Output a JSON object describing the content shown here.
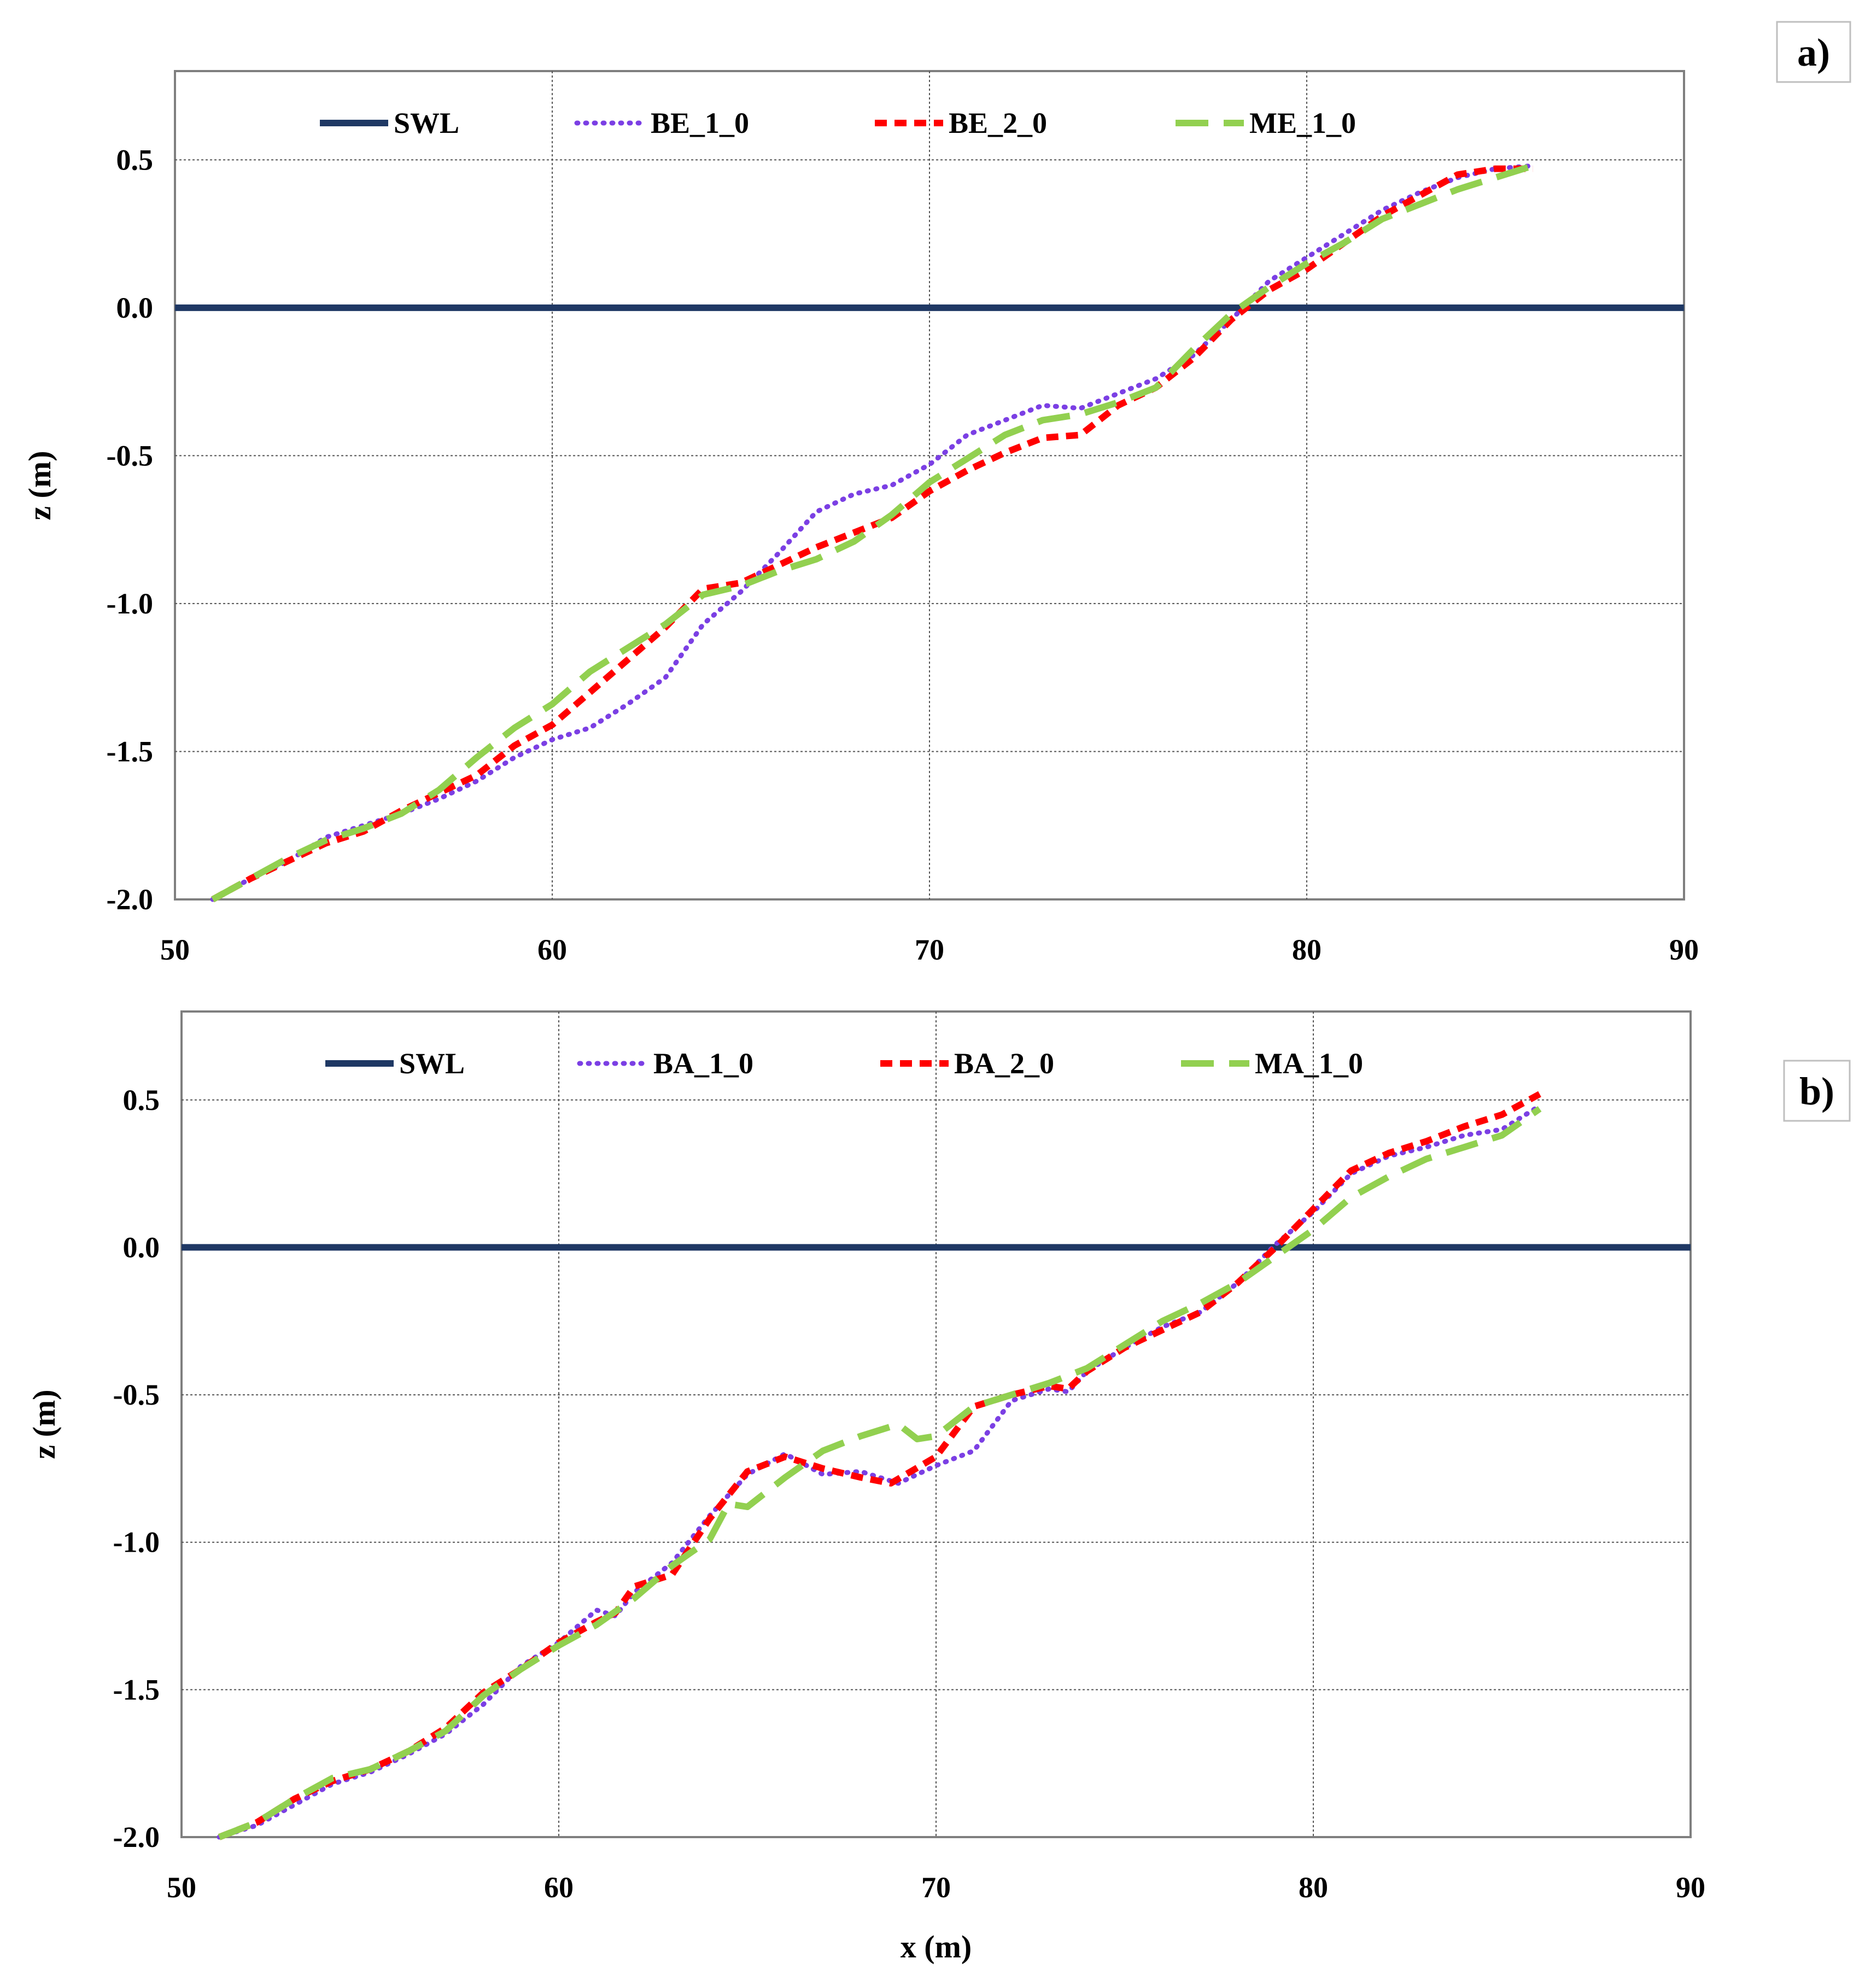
{
  "colors": {
    "SWL": "#1f3864",
    "BE": "#7b3fe4",
    "BE2": "#ff0000",
    "ME": "#92d050"
  },
  "chart_data": [
    {
      "type": "line",
      "panel_label": "a)",
      "xlabel": "",
      "ylabel": "z (m)",
      "xlim": [
        50,
        90
      ],
      "ylim": [
        -2.0,
        0.8
      ],
      "xticks": [
        "50",
        "60",
        "70",
        "80",
        "90"
      ],
      "yticks": [
        "0.5",
        "0.0",
        "-0.5",
        "-1.0",
        "-1.5",
        "-2.0"
      ],
      "grid": true,
      "legend_position": "top",
      "series": [
        {
          "name": "SWL",
          "style": "solid",
          "x": [
            50,
            90
          ],
          "y": [
            0.0,
            0.0
          ]
        },
        {
          "name": "BE_1_0",
          "style": "dotted",
          "x": [
            51,
            52,
            53,
            54,
            55,
            56,
            57,
            58,
            59,
            60,
            61,
            62,
            63,
            63.5,
            64,
            65,
            66,
            67,
            68,
            69,
            70,
            71,
            72,
            73,
            74,
            75,
            76,
            77,
            78,
            79,
            80,
            81,
            82,
            83,
            84,
            85,
            86
          ],
          "y": [
            -2.0,
            -1.93,
            -1.87,
            -1.79,
            -1.75,
            -1.71,
            -1.66,
            -1.6,
            -1.52,
            -1.46,
            -1.42,
            -1.34,
            -1.25,
            -1.16,
            -1.07,
            -0.96,
            -0.83,
            -0.69,
            -0.63,
            -0.6,
            -0.53,
            -0.43,
            -0.38,
            -0.33,
            -0.34,
            -0.29,
            -0.24,
            -0.16,
            -0.04,
            0.09,
            0.17,
            0.25,
            0.33,
            0.39,
            0.44,
            0.47,
            0.48
          ]
        },
        {
          "name": "BE_2_0",
          "style": "dashed",
          "x": [
            51,
            52,
            53,
            54,
            55,
            56,
            57,
            58,
            59,
            60,
            61,
            62,
            63,
            64,
            65,
            66,
            67,
            68,
            69,
            70,
            71,
            72,
            73,
            74,
            75,
            76,
            77,
            78,
            79,
            80,
            81,
            82,
            83,
            84,
            85,
            86
          ],
          "y": [
            -2.0,
            -1.93,
            -1.87,
            -1.81,
            -1.77,
            -1.7,
            -1.64,
            -1.58,
            -1.48,
            -1.41,
            -1.3,
            -1.19,
            -1.08,
            -0.95,
            -0.93,
            -0.87,
            -0.81,
            -0.76,
            -0.71,
            -0.62,
            -0.55,
            -0.49,
            -0.44,
            -0.43,
            -0.33,
            -0.27,
            -0.17,
            -0.04,
            0.06,
            0.13,
            0.22,
            0.31,
            0.38,
            0.45,
            0.47,
            0.47
          ]
        },
        {
          "name": "ME_1_0",
          "style": "longdash",
          "x": [
            51,
            52,
            53,
            54,
            55,
            56,
            57,
            58,
            59,
            60,
            61,
            62,
            63,
            64,
            65,
            66,
            67,
            68,
            69,
            70,
            71,
            72,
            73,
            74,
            75,
            76,
            77,
            78,
            79,
            80,
            81,
            82,
            83,
            84,
            85,
            86
          ],
          "y": [
            -2.0,
            -1.93,
            -1.86,
            -1.8,
            -1.76,
            -1.71,
            -1.63,
            -1.52,
            -1.42,
            -1.34,
            -1.23,
            -1.15,
            -1.07,
            -0.97,
            -0.94,
            -0.89,
            -0.85,
            -0.79,
            -0.7,
            -0.59,
            -0.51,
            -0.43,
            -0.38,
            -0.36,
            -0.32,
            -0.27,
            -0.14,
            -0.02,
            0.07,
            0.15,
            0.22,
            0.3,
            0.35,
            0.4,
            0.44,
            0.48
          ]
        }
      ]
    },
    {
      "type": "line",
      "panel_label": "b)",
      "xlabel": "x (m)",
      "ylabel": "z (m)",
      "xlim": [
        50,
        90
      ],
      "ylim": [
        -2.0,
        0.8
      ],
      "xticks": [
        "50",
        "60",
        "70",
        "80",
        "90"
      ],
      "yticks": [
        "0.5",
        "0.0",
        "-0.5",
        "-1.0",
        "-1.5",
        "-2.0"
      ],
      "grid": true,
      "legend_position": "top",
      "series": [
        {
          "name": "SWL",
          "style": "solid",
          "x": [
            50,
            90
          ],
          "y": [
            0.0,
            0.0
          ]
        },
        {
          "name": "BA_1_0",
          "style": "dotted",
          "x": [
            51,
            52,
            53,
            54,
            55,
            56,
            57,
            58,
            59,
            60,
            61,
            61.5,
            62,
            63,
            64,
            65,
            66,
            67,
            68,
            69,
            70,
            71,
            72,
            73,
            73.5,
            74,
            75,
            76,
            77,
            78,
            79,
            80,
            81,
            82,
            83,
            84,
            85,
            86
          ],
          "y": [
            -2.0,
            -1.96,
            -1.89,
            -1.82,
            -1.78,
            -1.72,
            -1.65,
            -1.55,
            -1.42,
            -1.34,
            -1.23,
            -1.25,
            -1.17,
            -1.07,
            -0.91,
            -0.77,
            -0.7,
            -0.77,
            -0.76,
            -0.8,
            -0.74,
            -0.69,
            -0.52,
            -0.48,
            -0.49,
            -0.42,
            -0.34,
            -0.27,
            -0.22,
            -0.12,
            0.01,
            0.12,
            0.25,
            0.31,
            0.34,
            0.38,
            0.4,
            0.48
          ]
        },
        {
          "name": "BA_2_0",
          "style": "dashed",
          "x": [
            51,
            52,
            53,
            54,
            55,
            56,
            57,
            58,
            59,
            60,
            61,
            61.5,
            62,
            63,
            64,
            65,
            66,
            67,
            68,
            68.8,
            70,
            71,
            72,
            73,
            73.5,
            74,
            75,
            76,
            77,
            78,
            79,
            80,
            81,
            82,
            83,
            84,
            85,
            86
          ],
          "y": [
            -2.0,
            -1.95,
            -1.87,
            -1.81,
            -1.77,
            -1.71,
            -1.63,
            -1.51,
            -1.43,
            -1.34,
            -1.27,
            -1.24,
            -1.15,
            -1.11,
            -0.92,
            -0.76,
            -0.71,
            -0.75,
            -0.78,
            -0.8,
            -0.71,
            -0.54,
            -0.5,
            -0.47,
            -0.48,
            -0.42,
            -0.34,
            -0.28,
            -0.22,
            -0.12,
            0.0,
            0.13,
            0.26,
            0.32,
            0.36,
            0.41,
            0.45,
            0.52
          ]
        },
        {
          "name": "MA_1_0",
          "style": "longdash",
          "x": [
            51,
            52,
            53,
            54,
            55,
            56,
            57,
            58,
            59,
            60,
            61,
            62,
            63,
            64,
            64.5,
            65,
            66,
            67,
            68,
            69,
            69.5,
            70,
            71,
            72,
            73,
            74,
            75,
            76,
            77,
            78,
            79,
            80,
            81,
            82,
            83,
            84,
            85,
            86
          ],
          "y": [
            -2.0,
            -1.95,
            -1.87,
            -1.8,
            -1.77,
            -1.71,
            -1.64,
            -1.52,
            -1.43,
            -1.35,
            -1.28,
            -1.19,
            -1.08,
            -0.99,
            -0.87,
            -0.88,
            -0.78,
            -0.69,
            -0.64,
            -0.6,
            -0.65,
            -0.64,
            -0.54,
            -0.5,
            -0.46,
            -0.41,
            -0.33,
            -0.25,
            -0.19,
            -0.12,
            -0.03,
            0.06,
            0.17,
            0.24,
            0.3,
            0.34,
            0.38,
            0.47
          ]
        }
      ]
    }
  ]
}
